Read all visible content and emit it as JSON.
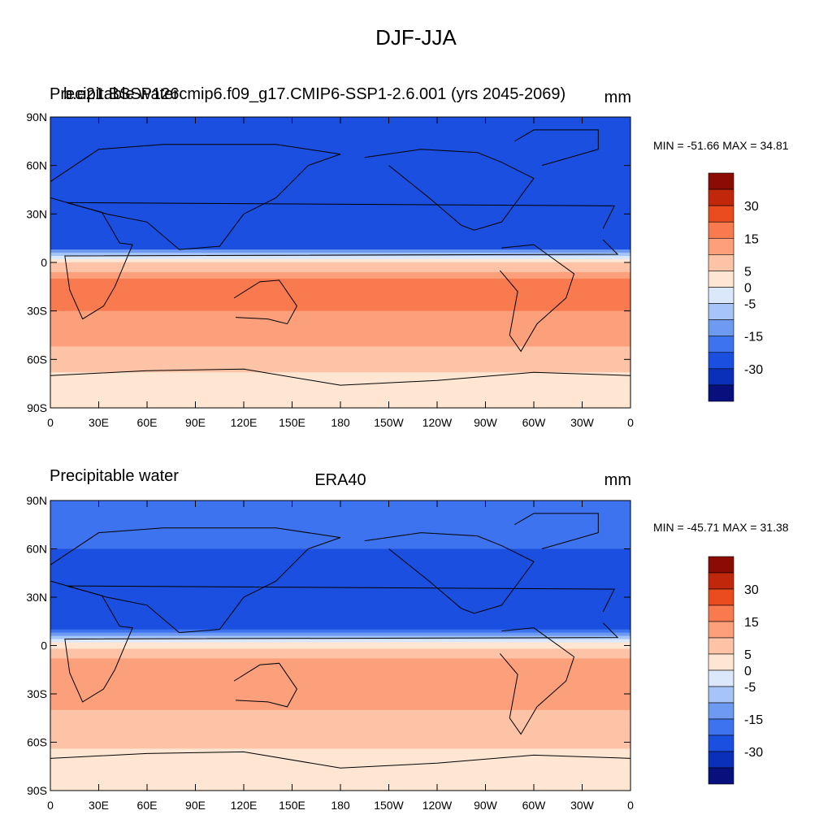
{
  "figure": {
    "title": "DJF-JJA"
  },
  "colors": {
    "levels_palette": [
      "#08107e",
      "#0a2fb8",
      "#1a4fe0",
      "#3d73ef",
      "#6e9af2",
      "#a6c4f7",
      "#dbe8fc",
      "#fee6d3",
      "#fdc3a6",
      "#fca07c",
      "#f97a4f",
      "#ea4b1f",
      "#c1270b",
      "#8c0b04"
    ],
    "coastline": "#000000",
    "frame": "#000000"
  },
  "chart_data": [
    {
      "type": "heatmap",
      "variable": "Precipitable water",
      "case": "b.e21.BSSP126cmip6.f09_g17.CMIP6-SSP1-2.6.001 (yrs 2045-2069)",
      "units": "mm",
      "title_left": "Precipitable water",
      "title_overlap": "b.e21.BSSP126cmip6.f09_g17.CMIP6-SSP1-2.6.001 (yrs 2045-2069)",
      "min_label": "MIN = -51.66 MAX =  34.81",
      "min": -51.66,
      "max": 34.81,
      "xticks": [
        "0",
        "30E",
        "60E",
        "90E",
        "120E",
        "150E",
        "180",
        "150W",
        "120W",
        "90W",
        "60W",
        "30W",
        "0"
      ],
      "yticks": [
        "90N",
        "60N",
        "30N",
        "0",
        "30S",
        "60S",
        "90S"
      ],
      "xlim": [
        0,
        360
      ],
      "ylim": [
        -90,
        90
      ],
      "colorbar_labels": [
        "30",
        "15",
        "5",
        "0",
        "-5",
        "-15",
        "-30"
      ],
      "zonal_pattern": [
        {
          "lat": 90,
          "value": -20
        },
        {
          "lat": 60,
          "value": -25
        },
        {
          "lat": 30,
          "value": -30
        },
        {
          "lat": 10,
          "value": -25
        },
        {
          "lat": 5,
          "value": -5
        },
        {
          "lat": 0,
          "value": 5
        },
        {
          "lat": -15,
          "value": 20
        },
        {
          "lat": -30,
          "value": 15
        },
        {
          "lat": -60,
          "value": 8
        },
        {
          "lat": -75,
          "value": 2
        },
        {
          "lat": -90,
          "value": 0
        }
      ]
    },
    {
      "type": "heatmap",
      "variable": "Precipitable water",
      "case": "ERA40",
      "units": "mm",
      "title_left": "Precipitable water",
      "title_center": "ERA40",
      "min_label": "MIN = -45.71 MAX =  31.38",
      "min": -45.71,
      "max": 31.38,
      "xticks": [
        "0",
        "30E",
        "60E",
        "90E",
        "120E",
        "150E",
        "180",
        "150W",
        "120W",
        "90W",
        "60W",
        "30W",
        "0"
      ],
      "yticks": [
        "90N",
        "60N",
        "30N",
        "0",
        "30S",
        "60S",
        "90S"
      ],
      "xlim": [
        0,
        360
      ],
      "ylim": [
        -90,
        90
      ],
      "colorbar_labels": [
        "30",
        "15",
        "5",
        "0",
        "-5",
        "-15",
        "-30"
      ],
      "zonal_pattern": [
        {
          "lat": 90,
          "value": -15
        },
        {
          "lat": 60,
          "value": -20
        },
        {
          "lat": 30,
          "value": -25
        },
        {
          "lat": 10,
          "value": -20
        },
        {
          "lat": 5,
          "value": -5
        },
        {
          "lat": 0,
          "value": 4
        },
        {
          "lat": -15,
          "value": 15
        },
        {
          "lat": -30,
          "value": 12
        },
        {
          "lat": -60,
          "value": 6
        },
        {
          "lat": -75,
          "value": 2
        },
        {
          "lat": -90,
          "value": 0
        }
      ]
    }
  ]
}
